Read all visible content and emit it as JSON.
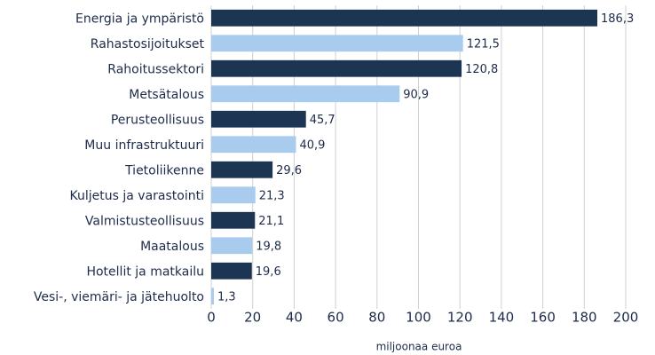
{
  "chart_data": {
    "type": "barh",
    "categories": [
      "Energia ja ympäristö",
      "Rahastosijoitukset",
      "Rahoitussektori",
      "Metsätalous",
      "Perusteollisuus",
      "Muu infrastruktuuri",
      "Tietoliikenne",
      "Kuljetus ja varastointi",
      "Valmistusteollisuus",
      "Maatalous",
      "Hotellit ja matkailu",
      "Vesi-, viemäri- ja jätehuolto"
    ],
    "values": [
      186.3,
      121.5,
      120.8,
      90.9,
      45.7,
      40.9,
      29.6,
      21.3,
      21.1,
      19.8,
      19.6,
      1.3
    ],
    "value_labels": [
      "186,3",
      "121,5",
      "120,8",
      "90,9",
      "45,7",
      "40,9",
      "29,6",
      "21,3",
      "21,1",
      "19,8",
      "19,6",
      "1,3"
    ],
    "colors": [
      "#1c3553",
      "#a9cbee",
      "#1c3553",
      "#a9cbee",
      "#1c3553",
      "#a9cbee",
      "#1c3553",
      "#a9cbee",
      "#1c3553",
      "#a9cbee",
      "#1c3553",
      "#a9cbee"
    ],
    "x_label": "miljoonaa euroa",
    "xlim": [
      0,
      200
    ],
    "xticks": [
      0,
      20,
      40,
      60,
      80,
      100,
      120,
      140,
      160,
      180,
      200
    ],
    "grid": true
  }
}
